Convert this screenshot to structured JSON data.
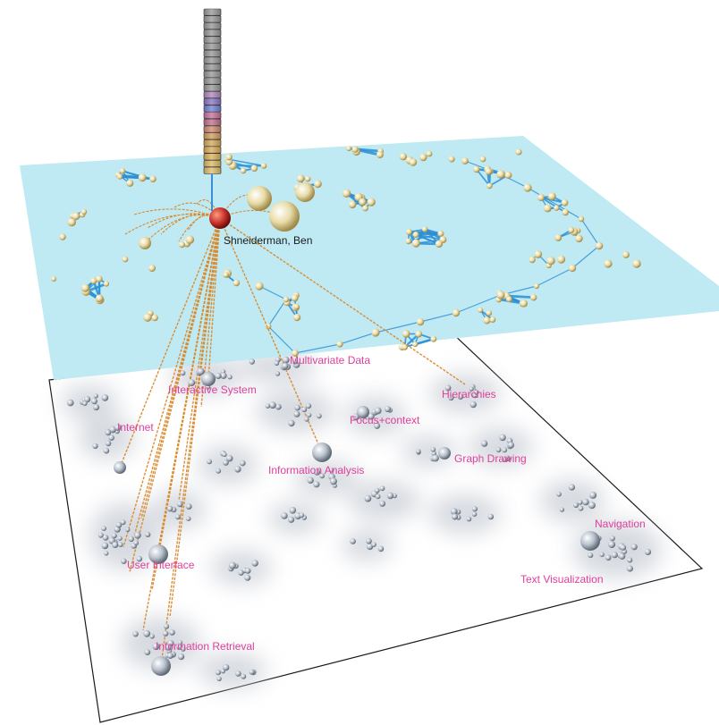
{
  "author": {
    "label": "Shneiderman, Ben"
  },
  "topics": [
    {
      "id": "t1",
      "label": "Multivariate Data"
    },
    {
      "id": "t2",
      "label": "Interactive System"
    },
    {
      "id": "t3",
      "label": "Hierarchies"
    },
    {
      "id": "t4",
      "label": "Internet"
    },
    {
      "id": "t5",
      "label": "Focus+context"
    },
    {
      "id": "t6",
      "label": "Graph Drawing"
    },
    {
      "id": "t7",
      "label": "Information Analysis"
    },
    {
      "id": "t8",
      "label": "Navigation"
    },
    {
      "id": "t9",
      "label": "User Interface"
    },
    {
      "id": "t10",
      "label": "Text Visualization"
    },
    {
      "id": "t11",
      "label": "Information Retrieval"
    }
  ],
  "colors": {
    "upper_plane": "#bfeaf3",
    "edge": "#2a8fd6",
    "link": "#d98a2c",
    "author_node": "#c6322a",
    "topic_label": "#e0409a",
    "node": "#e8dca8",
    "lower_node": "#a9b3bf"
  }
}
